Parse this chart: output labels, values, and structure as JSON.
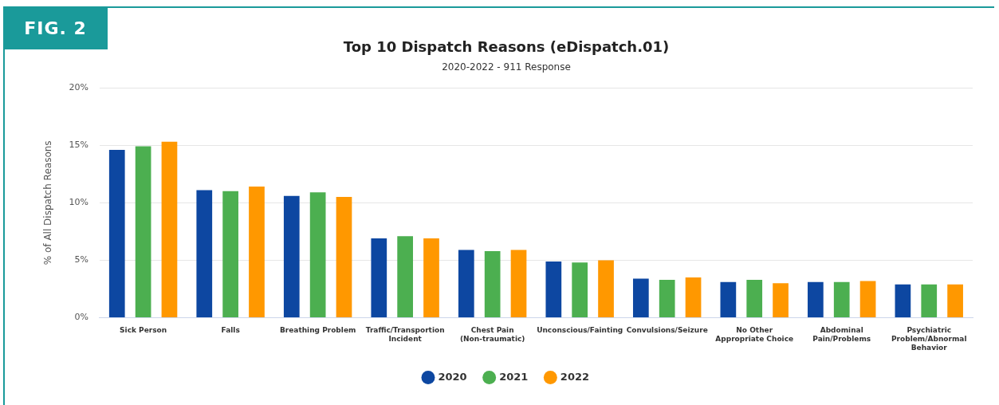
{
  "chart_data": {
    "type": "bar",
    "title": "Top 10 Dispatch Reasons (eDispatch.01)",
    "subtitle": "2020-2022 - 911 Response",
    "ylabel": "% of All Dispatch Reasons",
    "categories": [
      "Sick Person",
      "Falls",
      "Breathing Problem",
      "Traffic/Transportion Incident",
      "Chest Pain (Non-traumatic)",
      "Unconscious/Fainting",
      "Convulsions/Seizure",
      "No Other Appropriate Choice",
      "Abdominal Pain/Problems",
      "Psychiatric Problem/Abnormal Behavior"
    ],
    "series": [
      {
        "name": "2020",
        "color": "#0d47a1",
        "values": [
          14.6,
          11.1,
          10.6,
          6.9,
          5.9,
          4.9,
          3.4,
          3.1,
          3.1,
          2.9
        ]
      },
      {
        "name": "2021",
        "color": "#4caf50",
        "values": [
          14.9,
          11.0,
          10.9,
          7.1,
          5.8,
          4.8,
          3.3,
          3.3,
          3.1,
          2.9
        ]
      },
      {
        "name": "2022",
        "color": "#ff9800",
        "values": [
          15.3,
          11.4,
          10.5,
          6.9,
          5.9,
          5.0,
          3.5,
          3.0,
          3.2,
          2.9
        ]
      }
    ],
    "ylim": [
      0,
      20
    ],
    "yticks": [
      {
        "value": 0,
        "label": "0%"
      },
      {
        "value": 5,
        "label": "5%"
      },
      {
        "value": 10,
        "label": "10%"
      },
      {
        "value": 15,
        "label": "15%"
      },
      {
        "value": 20,
        "label": "20%"
      }
    ],
    "grid": "y",
    "legend": "bottom",
    "annotations": [
      "FIG. 2"
    ]
  }
}
